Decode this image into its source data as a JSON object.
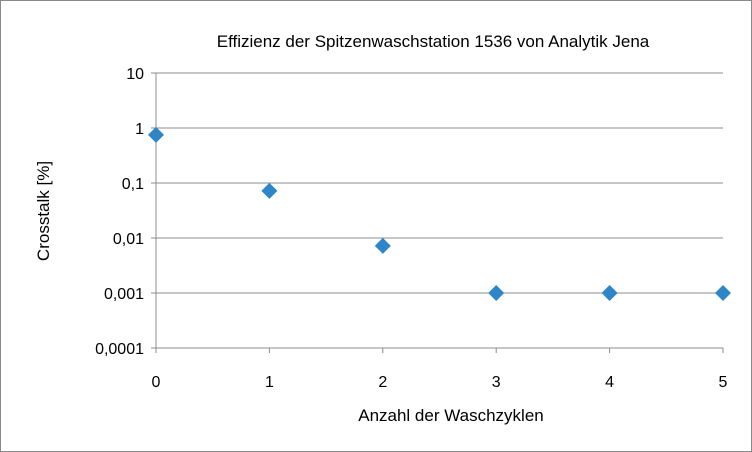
{
  "chart_data": {
    "type": "scatter",
    "title": "Effizienz der Spitzenwaschstation 1536 von Analytik Jena",
    "xlabel": "Anzahl der Waschzyklen",
    "ylabel": "Crosstalk [%]",
    "x_ticks": [
      "0",
      "1",
      "2",
      "3",
      "4",
      "5"
    ],
    "y_ticks": [
      "0,0001",
      "0,001",
      "0,01",
      "0,1",
      "1",
      "10"
    ],
    "xlim": [
      0,
      5
    ],
    "ylim": [
      0.0001,
      10
    ],
    "y_scale": "log",
    "grid": "horizontal",
    "legend": "none",
    "marker": "diamond",
    "marker_color": "#2E86C8",
    "series": [
      {
        "x": [
          0,
          1,
          2,
          3,
          4,
          5
        ],
        "y": [
          0.75,
          0.072,
          0.0072,
          0.001,
          0.001,
          0.001
        ]
      }
    ]
  }
}
